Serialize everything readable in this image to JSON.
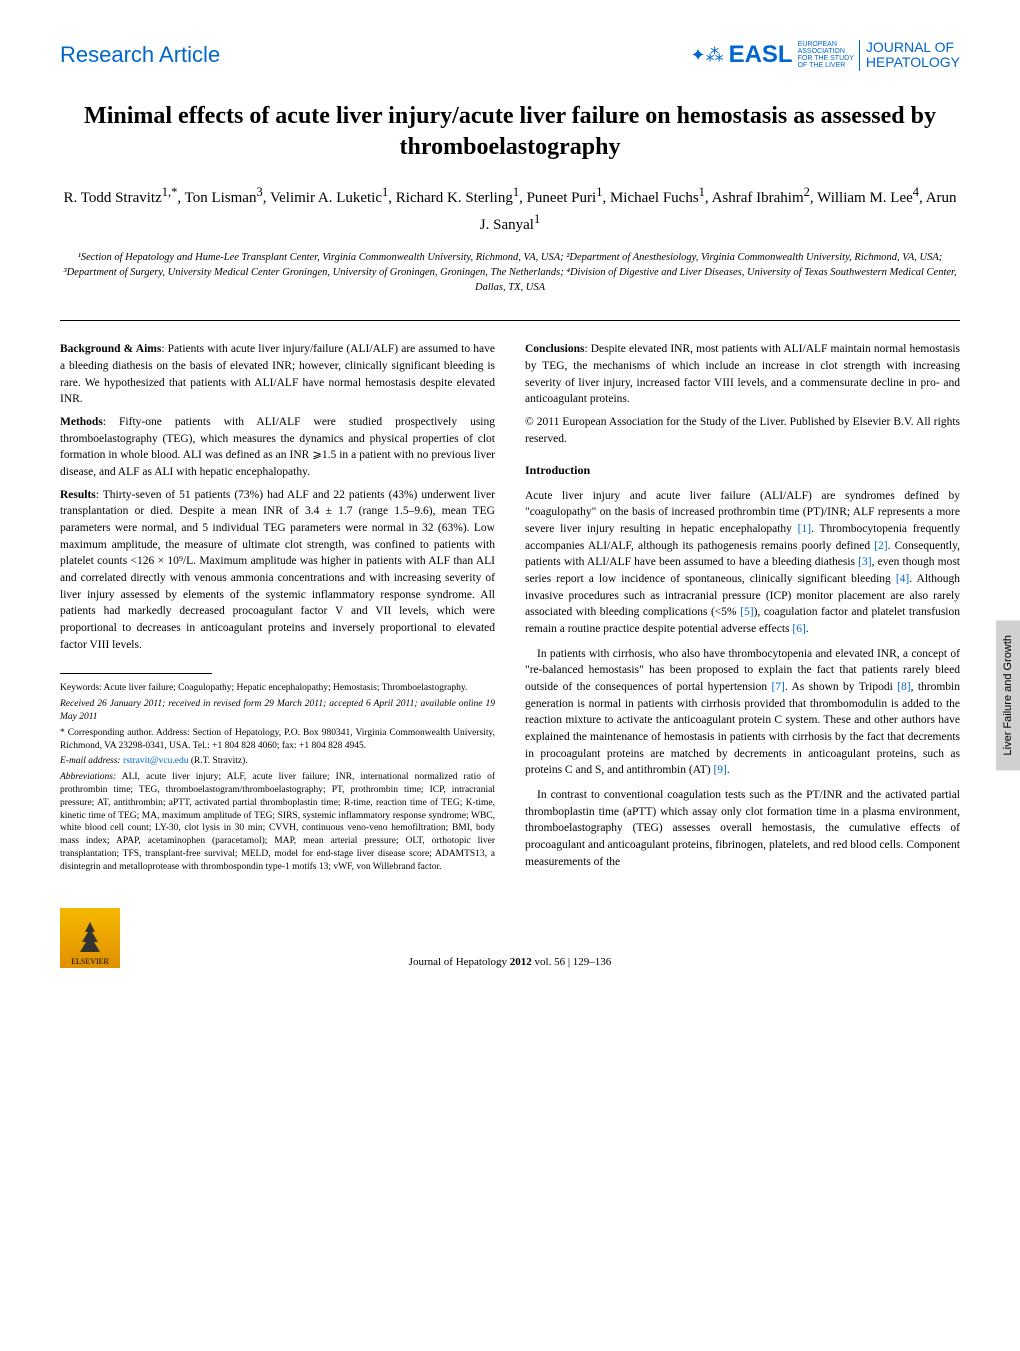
{
  "header": {
    "article_type": "Research Article",
    "easl_text": "EASL",
    "easl_sub1": "EUROPEAN",
    "easl_sub2": "ASSOCIATION",
    "easl_sub3": "FOR THE STUDY",
    "easl_sub4": "OF THE LIVER",
    "journal_line1": "JOURNAL OF",
    "journal_line2": "HEPATOLOGY"
  },
  "title": "Minimal effects of acute liver injury/acute liver failure on hemostasis as assessed by thromboelastography",
  "authors_html": "R. Todd Stravitz<sup>1,*</sup>, Ton Lisman<sup>3</sup>, Velimir A. Luketic<sup>1</sup>, Richard K. Sterling<sup>1</sup>, Puneet Puri<sup>1</sup>, Michael Fuchs<sup>1</sup>, Ashraf Ibrahim<sup>2</sup>, William M. Lee<sup>4</sup>, Arun J. Sanyal<sup>1</sup>",
  "affiliations": "¹Section of Hepatology and Hume-Lee Transplant Center, Virginia Commonwealth University, Richmond, VA, USA; ²Department of Anesthesiology, Virginia Commonwealth University, Richmond, VA, USA; ³Department of Surgery, University Medical Center Groningen, University of Groningen, Groningen, The Netherlands; ⁴Division of Digestive and Liver Diseases, University of Texas Southwestern Medical Center, Dallas, TX, USA",
  "abstract": {
    "background_label": "Background & Aims",
    "background_text": ": Patients with acute liver injury/failure (ALI/ALF) are assumed to have a bleeding diathesis on the basis of elevated INR; however, clinically significant bleeding is rare. We hypothesized that patients with ALI/ALF have normal hemostasis despite elevated INR.",
    "methods_label": "Methods",
    "methods_text": ": Fifty-one patients with ALI/ALF were studied prospectively using thromboelastography (TEG), which measures the dynamics and physical properties of clot formation in whole blood. ALI was defined as an INR ⩾1.5 in a patient with no previous liver disease, and ALF as ALI with hepatic encephalopathy.",
    "results_label": "Results",
    "results_text": ": Thirty-seven of 51 patients (73%) had ALF and 22 patients (43%) underwent liver transplantation or died. Despite a mean INR of 3.4 ± 1.7 (range 1.5–9.6), mean TEG parameters were normal, and 5 individual TEG parameters were normal in 32 (63%). Low maximum amplitude, the measure of ultimate clot strength, was confined to patients with platelet counts <126 × 10⁹/L. Maximum amplitude was higher in patients with ALF than ALI and correlated directly with venous ammonia concentrations and with increasing severity of liver injury assessed by elements of the systemic inflammatory response syndrome. All patients had markedly decreased procoagulant factor V and VII levels, which were proportional to decreases in anticoagulant proteins and inversely proportional to elevated factor VIII levels.",
    "conclusions_label": "Conclusions",
    "conclusions_text": ": Despite elevated INR, most patients with ALI/ALF maintain normal hemostasis by TEG, the mechanisms of which include an increase in clot strength with increasing severity of liver injury, increased factor VIII levels, and a commensurate decline in pro- and anticoagulant proteins.",
    "copyright": "© 2011 European Association for the Study of the Liver. Published by Elsevier B.V. All rights reserved."
  },
  "introduction": {
    "heading": "Introduction",
    "p1_pre": "Acute liver injury and acute liver failure (ALI/ALF) are syndromes defined by \"coagulopathy\" on the basis of increased prothrombin time (PT)/INR; ALF represents a more severe liver injury resulting in hepatic encephalopathy ",
    "ref1": "[1]",
    "p1_mid1": ". Thrombocytopenia frequently accompanies ALI/ALF, although its pathogenesis remains poorly defined ",
    "ref2": "[2]",
    "p1_mid2": ". Consequently, patients with ALI/ALF have been assumed to have a bleeding diathesis ",
    "ref3": "[3]",
    "p1_mid3": ", even though most series report a low incidence of spontaneous, clinically significant bleeding ",
    "ref4": "[4]",
    "p1_mid4": ". Although invasive procedures such as intracranial pressure (ICP) monitor placement are also rarely associated with bleeding complications (<5% ",
    "ref5": "[5]",
    "p1_mid5": "), coagulation factor and platelet transfusion remain a routine practice despite potential adverse effects ",
    "ref6": "[6]",
    "p1_end": ".",
    "p2_pre": "In patients with cirrhosis, who also have thrombocytopenia and elevated INR, a concept of \"re-balanced hemostasis\" has been proposed to explain the fact that patients rarely bleed outside of the consequences of portal hypertension ",
    "ref7": "[7]",
    "p2_mid1": ". As shown by Tripodi ",
    "ref8": "[8]",
    "p2_mid2": ", thrombin generation is normal in patients with cirrhosis provided that thrombomodulin is added to the reaction mixture to activate the anticoagulant protein C system. These and other authors have explained the maintenance of hemostasis in patients with cirrhosis by the fact that decrements in procoagulant proteins are matched by decrements in anticoagulant proteins, such as proteins C and S, and antithrombin (AT) ",
    "ref9": "[9]",
    "p2_end": ".",
    "p3": "In contrast to conventional coagulation tests such as the PT/INR and the activated partial thromboplastin time (aPTT) which assay only clot formation time in a plasma environment, thromboelastography (TEG) assesses overall hemostasis, the cumulative effects of procoagulant and anticoagulant proteins, fibrinogen, platelets, and red blood cells. Component measurements of the"
  },
  "footnotes": {
    "keywords": "Keywords: Acute liver failure; Coagulopathy; Hepatic encephalopathy; Hemostasis; Thromboelastography.",
    "received": "Received 26 January 2011; received in revised form 29 March 2011; accepted 6 April 2011; available online 19 May 2011",
    "corresponding": "* Corresponding author. Address: Section of Hepatology, P.O. Box 980341, Virginia Commonwealth University, Richmond, VA 23298-0341, USA. Tel.: +1 804 828 4060; fax: +1 804 828 4945.",
    "email_label": "E-mail address: ",
    "email": "rstravit@vcu.edu",
    "email_suffix": " (R.T. Stravitz).",
    "abbreviations_label": "Abbreviations:",
    "abbreviations": " ALI, acute liver injury; ALF, acute liver failure; INR, international normalized ratio of prothrombin time; TEG, thromboelastogram/thromboelastography; PT, prothrombin time; ICP, intracranial pressure; AT, antithrombin; aPTT, activated partial thromboplastin time; R-time, reaction time of TEG; K-time, kinetic time of TEG; MA, maximum amplitude of TEG; SIRS, systemic inflammatory response syndrome; WBC, white blood cell count; LY-30, clot lysis in 30 min; CVVH, continuous veno-veno hemofiltration; BMI, body mass index; APAP, acetaminophen (paracetamol); MAP, mean arterial pressure; OLT, orthotopic liver transplantation; TFS, transplant-free survival; MELD, model for end-stage liver disease score; ADAMTS13, a disintegrin and metalloprotease with thrombospondin type-1 motifs 13; vWF, von Willebrand factor."
  },
  "footer": {
    "elsevier": "ELSEVIER",
    "citation_journal": "Journal of Hepatology ",
    "citation_year": "2012",
    "citation_vol": " vol. 56 ",
    "citation_pages": "| 129–136"
  },
  "side_tab": "Liver Failure and Growth",
  "colors": {
    "link_blue": "#0066cc",
    "tab_gray": "#d0d0d0"
  }
}
